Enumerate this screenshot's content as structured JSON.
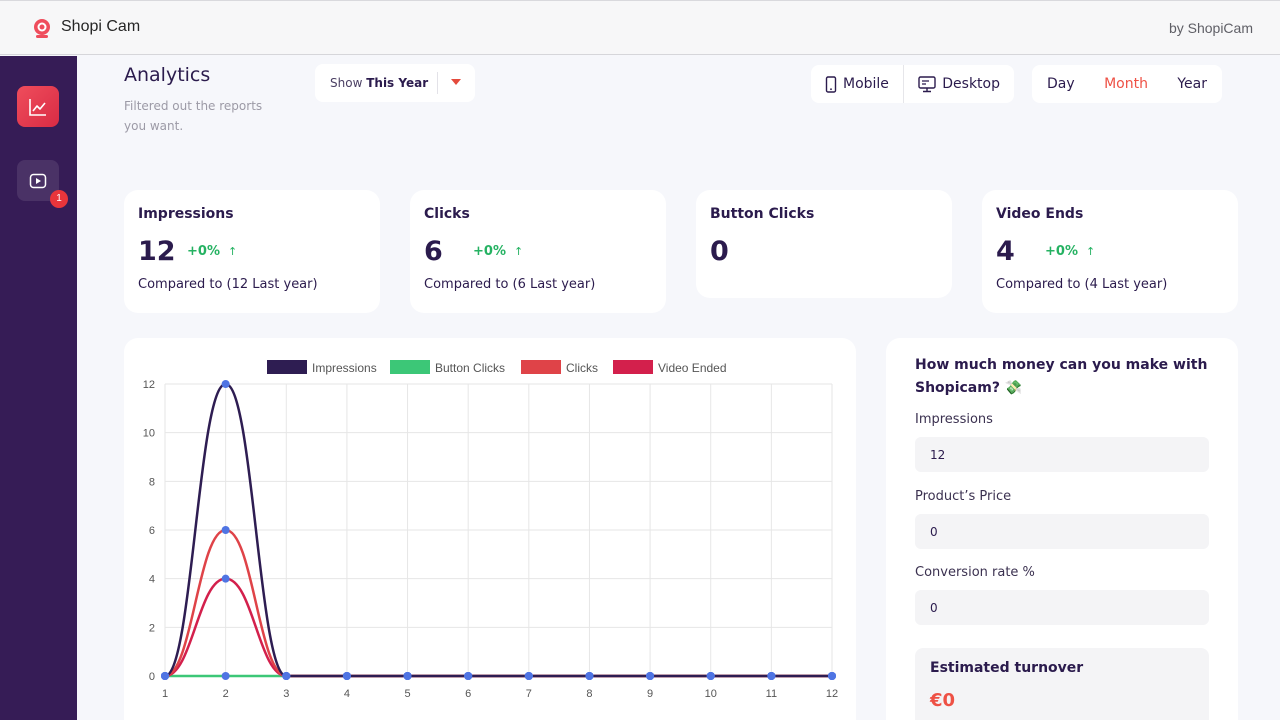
{
  "app": {
    "title": "Shopi Cam",
    "byline": "by ShopiCam"
  },
  "sidebar": {
    "items": [
      {
        "name": "analytics",
        "icon": "chart-line-icon",
        "active": true
      },
      {
        "name": "videos",
        "icon": "play-icon",
        "badge": "1"
      }
    ]
  },
  "header": {
    "title": "Analytics",
    "subtitle": "Filtered out the reports you want.",
    "show_prefix": "Show",
    "show_value": "This Year",
    "device": {
      "mobile": "Mobile",
      "desktop": "Desktop"
    },
    "period": {
      "day": "Day",
      "month": "Month",
      "year": "Year",
      "active": "Month"
    }
  },
  "stats": [
    {
      "title": "Impressions",
      "value": "12",
      "delta": "+0%",
      "compare": "Compared to (12 Last year)"
    },
    {
      "title": "Clicks",
      "value": "6",
      "delta": "+0%",
      "compare": "Compared to (6 Last year)"
    },
    {
      "title": "Button Clicks",
      "value": "0"
    },
    {
      "title": "Video Ends",
      "value": "4",
      "delta": "+0%",
      "compare": "Compared to (4 Last year)"
    }
  ],
  "chart_data": {
    "type": "line",
    "x": [
      1,
      2,
      3,
      4,
      5,
      6,
      7,
      8,
      9,
      10,
      11,
      12
    ],
    "ylim": [
      0,
      12
    ],
    "yticks": [
      0,
      2,
      4,
      6,
      8,
      10,
      12
    ],
    "grid": true,
    "legend_position": "top-center",
    "series": [
      {
        "name": "Impressions",
        "color": "#2e1d52",
        "values": [
          0,
          12,
          0,
          0,
          0,
          0,
          0,
          0,
          0,
          0,
          0,
          0
        ]
      },
      {
        "name": "Button Clicks",
        "color": "#3cc777",
        "values": [
          0,
          0,
          0,
          0,
          0,
          0,
          0,
          0,
          0,
          0,
          0,
          0
        ]
      },
      {
        "name": "Clicks",
        "color": "#df4348",
        "values": [
          0,
          6,
          0,
          0,
          0,
          0,
          0,
          0,
          0,
          0,
          0,
          0
        ]
      },
      {
        "name": "Video Ended",
        "color": "#d3204c",
        "values": [
          0,
          4,
          0,
          0,
          0,
          0,
          0,
          0,
          0,
          0,
          0,
          0
        ]
      }
    ],
    "point_color": "#4f74e3"
  },
  "calculator": {
    "title": "How much money can you make with Shopicam? 💸",
    "impressions_label": "Impressions",
    "impressions_value": "12",
    "price_label": "Product’s Price",
    "price_value": "0",
    "conversion_label": "Conversion rate %",
    "conversion_value": "0",
    "estimate_title": "Estimated turnover",
    "estimate_value": "€0"
  }
}
